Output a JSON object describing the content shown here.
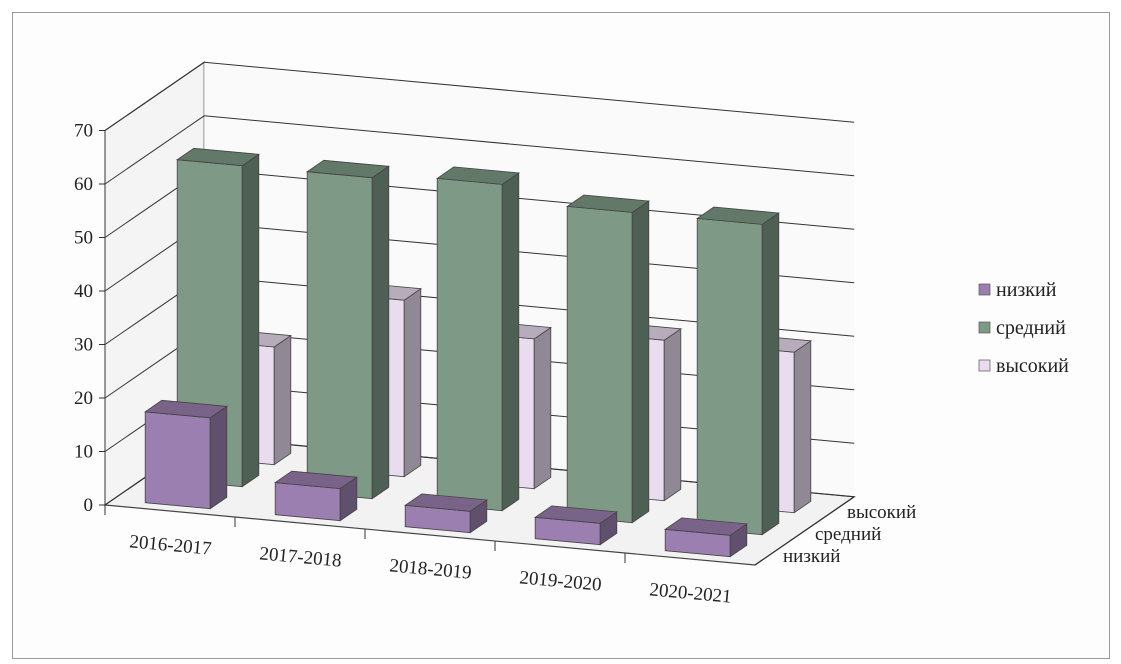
{
  "chart_data": {
    "type": "bar",
    "subtype": "3d-clustered-depth",
    "categories": [
      "2016-2017",
      "2017-2018",
      "2018-2019",
      "2019-2020",
      "2020-2021"
    ],
    "series": [
      {
        "name": "низкий",
        "values": [
          17,
          6,
          4,
          4,
          4
        ],
        "color": "#9b7fb0"
      },
      {
        "name": "средний",
        "values": [
          60,
          60,
          61,
          58,
          58
        ],
        "color": "#7e9a86"
      },
      {
        "name": "высокий",
        "values": [
          22,
          33,
          28,
          30,
          30
        ],
        "color": "#e9dcef"
      }
    ],
    "depth_labels": [
      "низкий",
      "средний",
      "высокий"
    ],
    "yticks": [
      "0",
      "10",
      "20",
      "30",
      "40",
      "50",
      "60",
      "70"
    ],
    "ylim": [
      0,
      70
    ],
    "grid": true,
    "legend_position": "right",
    "legend": [
      "низкий",
      "средний",
      "высокий"
    ]
  }
}
